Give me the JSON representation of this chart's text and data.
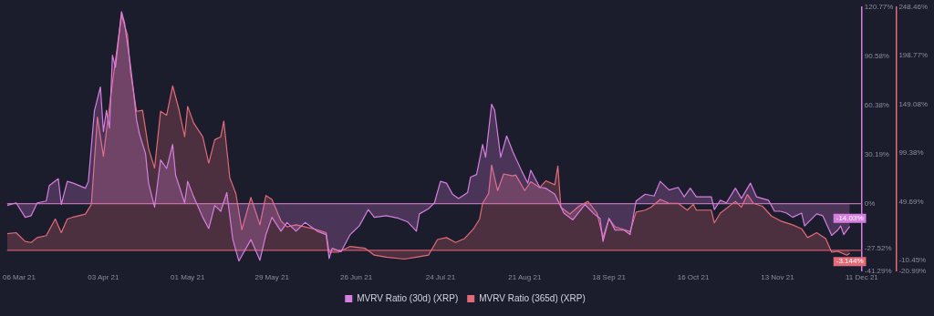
{
  "chart_data": {
    "type": "area",
    "legend": "bottom",
    "xlim": [
      "2021-03-02",
      "2021-12-11"
    ],
    "xticks": [
      {
        "value": "2021-03-06",
        "label": "06 Mar 21"
      },
      {
        "value": "2021-04-03",
        "label": "03 Apr 21"
      },
      {
        "value": "2021-05-01",
        "label": "01 May 21"
      },
      {
        "value": "2021-05-29",
        "label": "29 May 21"
      },
      {
        "value": "2021-06-26",
        "label": "26 Jun 21"
      },
      {
        "value": "2021-07-24",
        "label": "24 Jul 21"
      },
      {
        "value": "2021-08-21",
        "label": "21 Aug 21"
      },
      {
        "value": "2021-09-18",
        "label": "18 Sep 21"
      },
      {
        "value": "2021-10-16",
        "label": "16 Oct 21"
      },
      {
        "value": "2021-11-13",
        "label": "13 Nov 21"
      },
      {
        "value": "2021-12-11",
        "label": "11 Dec 21"
      }
    ],
    "ylim": [
      -41.29,
      120.77
    ],
    "yticks": [
      {
        "value": -41.29,
        "label": "-41.29%"
      },
      {
        "value": -27.52,
        "label": "-27.52%"
      },
      {
        "value": 0,
        "label": "0%"
      },
      {
        "value": 30.19,
        "label": "30.19%"
      },
      {
        "value": 60.38,
        "label": "60.38%"
      },
      {
        "value": 90.58,
        "label": "90.58%"
      },
      {
        "value": 120.77,
        "label": "120.77%"
      }
    ],
    "y2lim": [
      -20.99,
      248.46
    ],
    "y2ticks": [
      {
        "value": -20.99,
        "label": "-20.99%"
      },
      {
        "value": -10.45,
        "label": "-10.45%"
      },
      {
        "value": 49.69,
        "label": "49.69%"
      },
      {
        "value": 99.38,
        "label": "99.38%"
      },
      {
        "value": 149.08,
        "label": "149.08%"
      },
      {
        "value": 198.77,
        "label": "198.77%"
      },
      {
        "value": 248.46,
        "label": "248.46%"
      }
    ],
    "ref_lines": [
      {
        "axis": "y",
        "value": 0,
        "color": "#b86fae"
      },
      {
        "axis": "y2",
        "value": 0,
        "color": "#c95b6a"
      }
    ],
    "series": [
      {
        "name": "MVRV Ratio (30d) (XRP)",
        "color": "#d77fe0",
        "axis": "y",
        "x": [
          "2021-03-02",
          "2021-03-05",
          "2021-03-08",
          "2021-03-10",
          "2021-03-12",
          "2021-03-15",
          "2021-03-16",
          "2021-03-19",
          "2021-03-20",
          "2021-03-22",
          "2021-03-24",
          "2021-03-28",
          "2021-03-29",
          "2021-03-31",
          "2021-04-02",
          "2021-04-03",
          "2021-04-04",
          "2021-04-05",
          "2021-04-06",
          "2021-04-07",
          "2021-04-09",
          "2021-04-10",
          "2021-04-12",
          "2021-04-13",
          "2021-04-14",
          "2021-04-15",
          "2021-04-17",
          "2021-04-18",
          "2021-04-20",
          "2021-04-22",
          "2021-04-24",
          "2021-04-26",
          "2021-04-27",
          "2021-04-30",
          "2021-05-01",
          "2021-05-03",
          "2021-05-06",
          "2021-05-08",
          "2021-05-10",
          "2021-05-12",
          "2021-05-14",
          "2021-05-16",
          "2021-05-18",
          "2021-05-22",
          "2021-05-25",
          "2021-05-27",
          "2021-05-29",
          "2021-06-01",
          "2021-06-03",
          "2021-06-06",
          "2021-06-09",
          "2021-06-13",
          "2021-06-16",
          "2021-06-17",
          "2021-06-18",
          "2021-06-21",
          "2021-06-24",
          "2021-06-27",
          "2021-06-30",
          "2021-07-02",
          "2021-07-06",
          "2021-07-10",
          "2021-07-13",
          "2021-07-16",
          "2021-07-17",
          "2021-07-20",
          "2021-07-22",
          "2021-07-24",
          "2021-07-26",
          "2021-07-28",
          "2021-07-30",
          "2021-08-02",
          "2021-08-03",
          "2021-08-05",
          "2021-08-07",
          "2021-08-08",
          "2021-08-10",
          "2021-08-11",
          "2021-08-13",
          "2021-08-15",
          "2021-08-17",
          "2021-08-20",
          "2021-08-22",
          "2021-08-23",
          "2021-08-26",
          "2021-08-28",
          "2021-08-31",
          "2021-09-03",
          "2021-09-06",
          "2021-09-10",
          "2021-09-13",
          "2021-09-15",
          "2021-09-16",
          "2021-09-18",
          "2021-09-20",
          "2021-09-23",
          "2021-09-25",
          "2021-09-27",
          "2021-09-30",
          "2021-10-03",
          "2021-10-05",
          "2021-10-08",
          "2021-10-11",
          "2021-10-13",
          "2021-10-15",
          "2021-10-17",
          "2021-10-22",
          "2021-10-23",
          "2021-10-25",
          "2021-10-27",
          "2021-10-30",
          "2021-11-01",
          "2021-11-04",
          "2021-11-06",
          "2021-11-10",
          "2021-11-12",
          "2021-11-14",
          "2021-11-16",
          "2021-11-18",
          "2021-11-21",
          "2021-11-22",
          "2021-11-26",
          "2021-11-28",
          "2021-12-01",
          "2021-12-03",
          "2021-12-04",
          "2021-12-05",
          "2021-12-07"
        ],
        "values": [
          -1.1,
          0.5,
          -8.4,
          -7.4,
          0.5,
          1.6,
          11.1,
          15.3,
          -0.5,
          13.7,
          12.6,
          9.5,
          13.7,
          56.9,
          71.7,
          44.3,
          57.4,
          46.4,
          91.2,
          83.8,
          118.0,
          111.2,
          84.8,
          69.0,
          51.6,
          42.7,
          30.6,
          12.6,
          -2.1,
          26.9,
          21.6,
          36.4,
          17.4,
          0.5,
          13.7,
          4.2,
          -8.4,
          -15.3,
          -1.1,
          -4.7,
          6.8,
          -22.1,
          -35.3,
          -22.1,
          -34.8,
          -19.0,
          -8.4,
          -16.9,
          -11.6,
          -16.9,
          -11.6,
          -16.9,
          -19.0,
          -33.7,
          -27.4,
          -29.5,
          -19.0,
          -13.7,
          -3.7,
          -8.4,
          -7.4,
          -9.0,
          -11.1,
          -16.9,
          -6.3,
          -3.2,
          0.5,
          13.7,
          12.6,
          5.8,
          3.2,
          6.8,
          16.3,
          17.9,
          36.4,
          28.5,
          61.1,
          57.4,
          28.5,
          41.6,
          32.1,
          20.0,
          12.6,
          20.5,
          10.0,
          9.5,
          5.8,
          -5.8,
          -10.0,
          -0.5,
          -6.3,
          -9.0,
          -23.2,
          -9.0,
          -16.3,
          -16.3,
          -19.0,
          1.6,
          5.8,
          4.7,
          13.7,
          8.4,
          10.0,
          4.2,
          9.5,
          4.2,
          4.2,
          -3.7,
          2.1,
          0.5,
          9.5,
          3.2,
          12.6,
          4.2,
          2.1,
          -4.7,
          -4.7,
          -5.8,
          -8.4,
          -5.8,
          -13.7,
          -6.3,
          -7.4,
          -19.5,
          -16.3,
          -13.7,
          -19.0,
          -14.03
        ],
        "value_labels": [
          null,
          null,
          null,
          null,
          null,
          null,
          null,
          null,
          null,
          null,
          null,
          null,
          null,
          null,
          null,
          null,
          null,
          null,
          null,
          null,
          null,
          null,
          null,
          null,
          null,
          null,
          null,
          null,
          null,
          null,
          null,
          null,
          null,
          null,
          null,
          null,
          null,
          null,
          null,
          null,
          null,
          null,
          null,
          null,
          null,
          null,
          null,
          null,
          null,
          null,
          null,
          null,
          null,
          null,
          null,
          null,
          null,
          null,
          null,
          null,
          null,
          null,
          null,
          null,
          null,
          null,
          null,
          null,
          null,
          null,
          null,
          null,
          null,
          null,
          null,
          null,
          null,
          null,
          null,
          null,
          null,
          null,
          null,
          null,
          null,
          null,
          null,
          null,
          null,
          null,
          null,
          null,
          null,
          null,
          null,
          null,
          null,
          null,
          null,
          null,
          null,
          null,
          null,
          null,
          null,
          null,
          null,
          null,
          null,
          null,
          null,
          null,
          null,
          null,
          null,
          null,
          null,
          null,
          null,
          null,
          null,
          null,
          null,
          null,
          null,
          null,
          null,
          "-14.03%"
        ]
      },
      {
        "name": "MVRV Ratio (365d) (XRP)",
        "color": "#e36b78",
        "axis": "y2",
        "x": [
          "2021-03-02",
          "2021-03-05",
          "2021-03-08",
          "2021-03-10",
          "2021-03-12",
          "2021-03-15",
          "2021-03-18",
          "2021-03-20",
          "2021-03-22",
          "2021-03-24",
          "2021-03-28",
          "2021-03-30",
          "2021-04-01",
          "2021-04-03",
          "2021-04-04",
          "2021-04-06",
          "2021-04-08",
          "2021-04-09",
          "2021-04-11",
          "2021-04-12",
          "2021-04-14",
          "2021-04-16",
          "2021-04-18",
          "2021-04-20",
          "2021-04-22",
          "2021-04-24",
          "2021-04-26",
          "2021-04-28",
          "2021-04-30",
          "2021-05-01",
          "2021-05-03",
          "2021-05-06",
          "2021-05-08",
          "2021-05-10",
          "2021-05-12",
          "2021-05-13",
          "2021-05-15",
          "2021-05-17",
          "2021-05-19",
          "2021-05-22",
          "2021-05-25",
          "2021-05-27",
          "2021-05-29",
          "2021-06-01",
          "2021-06-03",
          "2021-06-06",
          "2021-06-09",
          "2021-06-13",
          "2021-06-16",
          "2021-06-17",
          "2021-06-20",
          "2021-06-24",
          "2021-06-29",
          "2021-07-02",
          "2021-07-06",
          "2021-07-12",
          "2021-07-16",
          "2021-07-20",
          "2021-07-23",
          "2021-07-26",
          "2021-07-29",
          "2021-08-01",
          "2021-08-04",
          "2021-08-06",
          "2021-08-07",
          "2021-08-09",
          "2021-08-10",
          "2021-08-12",
          "2021-08-14",
          "2021-08-17",
          "2021-08-18",
          "2021-08-21",
          "2021-08-23",
          "2021-08-26",
          "2021-08-28",
          "2021-08-31",
          "2021-09-01",
          "2021-09-02",
          "2021-09-05",
          "2021-09-08",
          "2021-09-11",
          "2021-09-14",
          "2021-09-16",
          "2021-09-18",
          "2021-09-20",
          "2021-09-25",
          "2021-09-27",
          "2021-09-30",
          "2021-10-02",
          "2021-10-05",
          "2021-10-08",
          "2021-10-11",
          "2021-10-14",
          "2021-10-16",
          "2021-10-17",
          "2021-10-22",
          "2021-10-23",
          "2021-10-25",
          "2021-10-30",
          "2021-11-01",
          "2021-11-03",
          "2021-11-05",
          "2021-11-08",
          "2021-11-11",
          "2021-11-14",
          "2021-11-18",
          "2021-11-21",
          "2021-11-23",
          "2021-11-26",
          "2021-11-29",
          "2021-12-01",
          "2021-12-03",
          "2021-12-06",
          "2021-12-07"
        ],
        "values": [
          17,
          18,
          9,
          8,
          13,
          15,
          32,
          18,
          32,
          34,
          37,
          47,
          136,
          96,
          122,
          171,
          217,
          240,
          220,
          182,
          142,
          143,
          104,
          84,
          142,
          138,
          168,
          145,
          116,
          147,
          130,
          116,
          89,
          113,
          116,
          132,
          74,
          58,
          21,
          54,
          26,
          56,
          52,
          30,
          24,
          26,
          24,
          21,
          18,
          -2,
          -2,
          4,
          2,
          -5,
          -7,
          -9,
          -7,
          -5,
          11,
          13,
          8,
          12,
          22,
          32,
          48,
          58,
          87,
          61,
          78,
          76,
          77,
          61,
          70,
          64,
          71,
          67,
          86,
          44,
          37,
          45,
          50,
          38,
          13,
          32,
          24,
          19,
          39,
          41,
          44,
          52,
          48,
          48,
          41,
          47,
          41,
          41,
          28,
          38,
          50,
          44,
          57,
          48,
          45,
          35,
          30,
          26,
          22,
          13,
          18,
          12,
          -2,
          -1,
          -5,
          -3.144
        ],
        "value_labels": [
          null,
          null,
          null,
          null,
          null,
          null,
          null,
          null,
          null,
          null,
          null,
          null,
          null,
          null,
          null,
          null,
          null,
          null,
          null,
          null,
          null,
          null,
          null,
          null,
          null,
          null,
          null,
          null,
          null,
          null,
          null,
          null,
          null,
          null,
          null,
          null,
          null,
          null,
          null,
          null,
          null,
          null,
          null,
          null,
          null,
          null,
          null,
          null,
          null,
          null,
          null,
          null,
          null,
          null,
          null,
          null,
          null,
          null,
          null,
          null,
          null,
          null,
          null,
          null,
          null,
          null,
          null,
          null,
          null,
          null,
          null,
          null,
          null,
          null,
          null,
          null,
          null,
          null,
          null,
          null,
          null,
          null,
          null,
          null,
          null,
          null,
          null,
          null,
          null,
          null,
          null,
          null,
          null,
          null,
          null,
          null,
          null,
          null,
          null,
          null,
          null,
          null,
          null,
          null,
          null,
          null,
          null,
          null,
          null,
          null,
          null,
          null,
          null,
          "-3.144%"
        ]
      }
    ]
  }
}
